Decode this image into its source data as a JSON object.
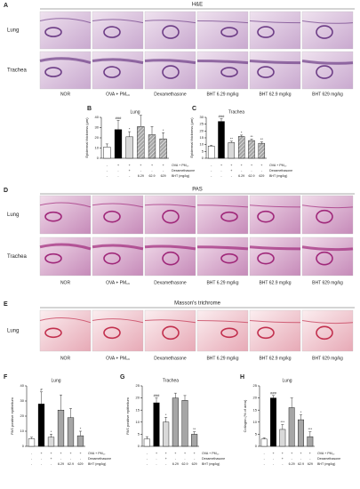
{
  "figure": {
    "panels": [
      "A",
      "B",
      "C",
      "D",
      "E",
      "F",
      "G",
      "H"
    ],
    "sections": [
      "H&E",
      "PAS",
      "Masson's trichrome"
    ],
    "row_labels": {
      "he": [
        "Lung",
        "Trachea"
      ],
      "pas": [
        "Lung",
        "Trachea"
      ],
      "mt": [
        "Lung"
      ]
    },
    "captions": [
      "NOR",
      "OVA + PM₁₀",
      "Dexamethasone",
      "BHT 6.29 mg/kg",
      "BHT 62.9 mg/kg",
      "BHT 629 mg/kg"
    ]
  },
  "chart_data": [
    {
      "type": "bar",
      "title": "Lung",
      "ylabel": "Epidermal thickness (μm)",
      "values": [
        11,
        28,
        21,
        31,
        23,
        19
      ],
      "errors": [
        3,
        9,
        5,
        11,
        8,
        6
      ],
      "annotations": [
        null,
        "###",
        "*",
        null,
        null,
        "*"
      ],
      "colors": [
        "#ffffff",
        "#000000",
        "#d9d9d9",
        "#a6a6a6",
        "#a6a6a6",
        "#a6a6a6"
      ],
      "hatched": [
        false,
        false,
        false,
        true,
        true,
        true
      ],
      "ylim": [
        0,
        40
      ],
      "yticks": [
        0,
        10,
        20,
        30,
        40
      ],
      "conditions": [
        {
          "label": "OVA + PM₁₀",
          "cells": [
            "-",
            "+",
            "+",
            "+",
            "+",
            "+"
          ]
        },
        {
          "label": "Dexamethasone",
          "cells": [
            "-",
            "-",
            "+",
            "-",
            "-",
            "-"
          ]
        },
        {
          "label": "BHT (mg/kg)",
          "cells": [
            "-",
            "-",
            "-",
            "6.29",
            "62.9",
            "629"
          ]
        }
      ]
    },
    {
      "type": "bar",
      "title": "Trachea",
      "ylabel": "Epidermal thickness (μm)",
      "values": [
        9,
        27,
        11.5,
        16,
        13,
        11
      ],
      "errors": [
        0.5,
        2,
        1,
        1,
        1,
        1
      ],
      "annotations": [
        null,
        "###",
        "**",
        "*",
        "**",
        "**"
      ],
      "colors": [
        "#ffffff",
        "#000000",
        "#d9d9d9",
        "#a6a6a6",
        "#a6a6a6",
        "#a6a6a6"
      ],
      "hatched": [
        false,
        false,
        false,
        true,
        true,
        true
      ],
      "ylim": [
        0,
        30
      ],
      "yticks": [
        0,
        5,
        10,
        15,
        20,
        25,
        30
      ],
      "conditions": [
        {
          "label": "OVA + PM₁₀",
          "cells": [
            "-",
            "+",
            "+",
            "+",
            "+",
            "+"
          ]
        },
        {
          "label": "Dexamethasone",
          "cells": [
            "-",
            "-",
            "+",
            "-",
            "-",
            "-"
          ]
        },
        {
          "label": "BHT (mg/kg)",
          "cells": [
            "-",
            "-",
            "-",
            "6.29",
            "62.9",
            "629"
          ]
        }
      ]
    },
    {
      "type": "bar",
      "title": "Lung",
      "ylabel": "PAS positive epithelium",
      "values": [
        5,
        28,
        6,
        24,
        19,
        7
      ],
      "errors": [
        1,
        8,
        2,
        10,
        6,
        3
      ],
      "annotations": [
        null,
        "#",
        "*",
        null,
        null,
        "*"
      ],
      "colors": [
        "#ffffff",
        "#000000",
        "#d9d9d9",
        "#a6a6a6",
        "#a6a6a6",
        "#a6a6a6"
      ],
      "hatched": [
        false,
        false,
        false,
        false,
        false,
        false
      ],
      "ylim": [
        0,
        40
      ],
      "yticks": [
        0,
        10,
        20,
        30,
        40
      ],
      "conditions": [
        {
          "label": "OVA + PM₁₀",
          "cells": [
            "-",
            "+",
            "+",
            "+",
            "+",
            "+"
          ]
        },
        {
          "label": "Dexamethasone",
          "cells": [
            "-",
            "-",
            "+",
            "-",
            "-",
            "-"
          ]
        },
        {
          "label": "BHT (mg/kg)",
          "cells": [
            "-",
            "-",
            "-",
            "6.29",
            "62.9",
            "629"
          ]
        }
      ]
    },
    {
      "type": "bar",
      "title": "Trachea",
      "ylabel": "PAS positive epithelium",
      "values": [
        3,
        18,
        10,
        20,
        19,
        5
      ],
      "errors": [
        1,
        2,
        2,
        2,
        2,
        1
      ],
      "annotations": [
        null,
        "###",
        "*",
        null,
        null,
        "**"
      ],
      "colors": [
        "#ffffff",
        "#000000",
        "#d9d9d9",
        "#a6a6a6",
        "#a6a6a6",
        "#a6a6a6"
      ],
      "hatched": [
        false,
        false,
        false,
        false,
        false,
        false
      ],
      "ylim": [
        0,
        25
      ],
      "yticks": [
        0,
        5,
        10,
        15,
        20,
        25
      ],
      "conditions": [
        {
          "label": "OVA + PM₁₀",
          "cells": [
            "-",
            "+",
            "+",
            "+",
            "+",
            "+"
          ]
        },
        {
          "label": "Dexamethasone",
          "cells": [
            "-",
            "-",
            "+",
            "-",
            "-",
            "-"
          ]
        },
        {
          "label": "BHT (mg/kg)",
          "cells": [
            "-",
            "-",
            "-",
            "6.29",
            "62.9",
            "629"
          ]
        }
      ]
    },
    {
      "type": "bar",
      "title": "Lung",
      "ylabel": "Collagen (% of area)",
      "values": [
        3,
        20,
        7,
        16,
        11,
        4
      ],
      "errors": [
        0.5,
        1,
        2,
        4,
        2,
        2
      ],
      "annotations": [
        null,
        "###",
        "***",
        null,
        "*",
        "***"
      ],
      "colors": [
        "#ffffff",
        "#000000",
        "#d9d9d9",
        "#a6a6a6",
        "#a6a6a6",
        "#a6a6a6"
      ],
      "hatched": [
        false,
        false,
        false,
        false,
        false,
        false
      ],
      "ylim": [
        0,
        25
      ],
      "yticks": [
        0,
        5,
        10,
        15,
        20,
        25
      ],
      "conditions": [
        {
          "label": "OVA + PM₁₀",
          "cells": [
            "-",
            "+",
            "+",
            "+",
            "+",
            "+"
          ]
        },
        {
          "label": "Dexamethasone",
          "cells": [
            "-",
            "-",
            "+",
            "-",
            "-",
            "-"
          ]
        },
        {
          "label": "BHT (mg/kg)",
          "cells": [
            "-",
            "-",
            "-",
            "6.29",
            "62.9",
            "629"
          ]
        }
      ]
    }
  ]
}
